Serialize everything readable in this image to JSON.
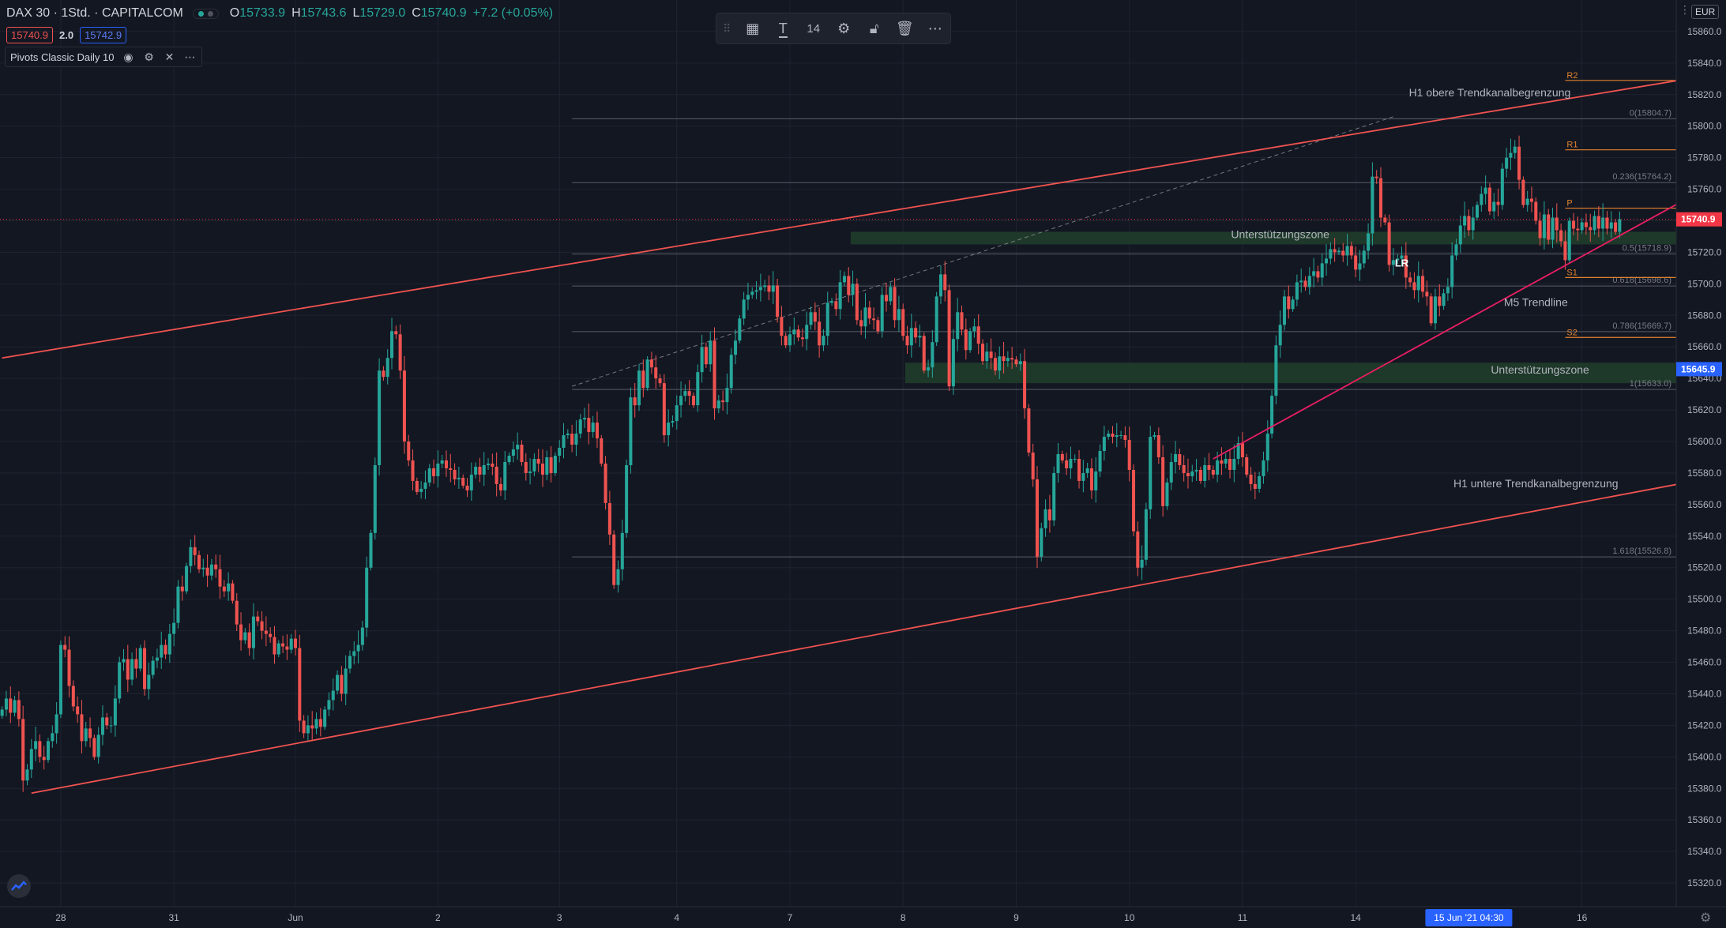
{
  "header": {
    "symbol": "DAX 30",
    "interval": "1Std.",
    "exchange": "CAPITALCOM",
    "open_label": "O",
    "open": "15733.9",
    "high_label": "H",
    "high": "15743.6",
    "low_label": "L",
    "low": "15729.0",
    "close_label": "C",
    "close": "15740.9",
    "change": "+7.2 (+0.05%)",
    "bid": "15740.9",
    "spread": "2.0",
    "ask": "15742.9",
    "indicator": "Pivots Classic Daily 10"
  },
  "toolbar": {
    "font_size": "14"
  },
  "currency": "EUR",
  "colors": {
    "background": "#131722",
    "up": "#26a69a",
    "down": "#ef5350",
    "channel": "#ef5350",
    "trendline": "#e91e63",
    "zone": "#1f3a2a",
    "grid": "#1f2330",
    "last_price_badge": "#f23645",
    "zone_price_badge": "#2962ff"
  },
  "chart_data": {
    "type": "candlestick",
    "title": "DAX 30, 1Std., CAPITALCOM",
    "y_axis": {
      "ticks": [
        15860,
        15840,
        15820,
        15800,
        15780,
        15760,
        15740,
        15720,
        15700,
        15680,
        15660,
        15640,
        15620,
        15600,
        15580,
        15560,
        15540,
        15520,
        15500,
        15480,
        15460,
        15440,
        15420,
        15400,
        15380,
        15360,
        15340,
        15320
      ],
      "tick_labels": [
        "15860.0",
        "15840.0",
        "15820.0",
        "15800.0",
        "15780.0",
        "15760.0",
        "15740.0",
        "15720.0",
        "15700.0",
        "15680.0",
        "15660.0",
        "15640.0",
        "15620.0",
        "15600.0",
        "15580.0",
        "15560.0",
        "15540.0",
        "15520.0",
        "15500.0",
        "15480.0",
        "15460.0",
        "15440.0",
        "15420.0",
        "15400.0",
        "15380.0",
        "15360.0",
        "15340.0",
        "15320.0"
      ],
      "ylim": [
        15305,
        15880
      ]
    },
    "x_axis": {
      "labels": [
        "28",
        "31",
        "Jun",
        "2",
        "3",
        "4",
        "7",
        "8",
        "9",
        "10",
        "11",
        "14",
        "16"
      ],
      "label_bars": [
        14,
        41,
        70,
        104,
        133,
        161,
        188,
        215,
        242,
        269,
        296,
        323,
        377
      ],
      "total_bars": 400,
      "crosshair_label": "15 Jun '21   04:30",
      "crosshair_bar": 350
    },
    "candles": [
      15430,
      15437,
      15428,
      15436,
      15424,
      15385,
      15392,
      15405,
      15410,
      15400,
      15398,
      15410,
      15415,
      15427,
      15471,
      15468,
      15445,
      15432,
      15427,
      15410,
      15418,
      15412,
      15400,
      15414,
      15425,
      15420,
      15420,
      15437,
      15460,
      15462,
      15449,
      15462,
      15456,
      15469,
      15443,
      15452,
      15461,
      15463,
      15471,
      15465,
      15478,
      15485,
      15508,
      15505,
      15521,
      15533,
      15528,
      15519,
      15520,
      15515,
      15522,
      15519,
      15508,
      15505,
      15510,
      15499,
      15484,
      15474,
      15479,
      15469,
      15489,
      15486,
      15480,
      15478,
      15476,
      15465,
      15472,
      15470,
      15468,
      15475,
      15469,
      15423,
      15415,
      15420,
      15418,
      15424,
      15419,
      15430,
      15436,
      15442,
      15452,
      15440,
      15456,
      15464,
      15467,
      15471,
      15482,
      15520,
      15542,
      15585,
      15645,
      15641,
      15653,
      15670,
      15668,
      15645,
      15600,
      15588,
      15575,
      15568,
      15570,
      15574,
      15583,
      15578,
      15586,
      15588,
      15583,
      15582,
      15576,
      15577,
      15572,
      15569,
      15579,
      15584,
      15579,
      15585,
      15586,
      15584,
      15573,
      15569,
      15587,
      15591,
      15595,
      15598,
      15587,
      15580,
      15581,
      15589,
      15586,
      15579,
      15590,
      15580,
      15591,
      15596,
      15604,
      15605,
      15598,
      15605,
      15614,
      15615,
      15606,
      15612,
      15602,
      15586,
      15561,
      15541,
      15509,
      15519,
      15542,
      15585,
      15628,
      15623,
      15645,
      15634,
      15652,
      15647,
      15640,
      15637,
      15604,
      15612,
      15613,
      15623,
      15629,
      15632,
      15629,
      15623,
      15644,
      15660,
      15649,
      15664,
      15621,
      15626,
      15625,
      15634,
      15655,
      15664,
      15678,
      15690,
      15693,
      15695,
      15696,
      15698,
      15699,
      15695,
      15699,
      15679,
      15667,
      15661,
      15668,
      15671,
      15666,
      15665,
      15674,
      15682,
      15676,
      15661,
      15667,
      15688,
      15689,
      15684,
      15701,
      15705,
      15693,
      15700,
      15677,
      15673,
      15685,
      15678,
      15677,
      15670,
      15693,
      15689,
      15698,
      15677,
      15684,
      15667,
      15661,
      15672,
      15666,
      15667,
      15645,
      15647,
      15663,
      15692,
      15706,
      15696,
      15635,
      15665,
      15682,
      15671,
      15658,
      15670,
      15673,
      15662,
      15651,
      15657,
      15653,
      15645,
      15654,
      15651,
      15653,
      15652,
      15649,
      15651,
      15621,
      15593,
      15576,
      15527,
      15545,
      15557,
      15550,
      15580,
      15592,
      15588,
      15583,
      15589,
      15589,
      15575,
      15580,
      15583,
      15569,
      15581,
      15594,
      15603,
      15605,
      15603,
      15604,
      15604,
      15601,
      15582,
      15543,
      15520,
      15525,
      15557,
      15603,
      15604,
      15590,
      15559,
      15574,
      15587,
      15592,
      15585,
      15580,
      15578,
      15581,
      15582,
      15575,
      15585,
      15582,
      15579,
      15588,
      15586,
      15589,
      15582,
      15589,
      15599,
      15590,
      15579,
      15573,
      15570,
      15578,
      15588,
      15605,
      15629,
      15661,
      15674,
      15692,
      15684,
      15690,
      15701,
      15702,
      15698,
      15705,
      15708,
      15704,
      15713,
      15716,
      15722,
      15720,
      15721,
      15718,
      15724,
      15718,
      15709,
      15713,
      15721,
      15732,
      15768,
      15767,
      15742,
      15739,
      15712,
      15715,
      15716,
      15718,
      15704,
      15701,
      15696,
      15705,
      15695,
      15692,
      15675,
      15692,
      15686,
      15694,
      15698,
      15718,
      15725,
      15737,
      15743,
      15734,
      15742,
      15750,
      15757,
      15761,
      15746,
      15752,
      15750,
      15773,
      15780,
      15783,
      15787,
      15766,
      15750,
      15754,
      15752,
      15740,
      15729,
      15744,
      15728,
      15742,
      15734,
      15727,
      15715,
      15740,
      15735,
      15734,
      15739,
      15736,
      15734,
      15743,
      15735,
      15742,
      15735,
      15739,
      15733,
      15741
    ],
    "last_price": 15740.9,
    "lines": [
      {
        "name": "H1 obere Trendkanalbegrenzung",
        "color": "#ef5350",
        "from": {
          "bar": 0,
          "price": 15653
        },
        "to": {
          "bar": 400,
          "price": 15829
        }
      },
      {
        "name": "H1 untere Trendkanalbegrenzung",
        "color": "#ef5350",
        "from": {
          "bar": 7,
          "price": 15377
        },
        "to": {
          "bar": 400,
          "price": 15573
        }
      },
      {
        "name": "M5 Trendline",
        "color": "#e91e63",
        "from": {
          "bar": 289,
          "price": 15589
        },
        "to": {
          "bar": 400,
          "price": 15751
        }
      }
    ],
    "dashed_trend": {
      "from": {
        "bar": 136,
        "price": 15635
      },
      "to": {
        "bar": 332,
        "price": 15806
      }
    },
    "zones": [
      {
        "label": "Unterstützungszone",
        "from_bar": 203,
        "to_bar": 400,
        "top": 15733,
        "bottom": 15725
      },
      {
        "label": "Unterstützungszone",
        "from_bar": 216,
        "to_bar": 400,
        "top": 15650,
        "bottom": 15637
      }
    ],
    "fib_levels": [
      {
        "label": "0(15804.7)",
        "price": 15804.7
      },
      {
        "label": "0.236(15764.2)",
        "price": 15764.2
      },
      {
        "label": "0.5(15718.9)",
        "price": 15718.9
      },
      {
        "label": "0.618(15698.6)",
        "price": 15698.6
      },
      {
        "label": "0.786(15669.7)",
        "price": 15669.7
      },
      {
        "label": "1(15633.0)",
        "price": 15633.0
      },
      {
        "label": "1.618(15526.8)",
        "price": 15526.8
      }
    ],
    "pivots": [
      {
        "label": "R2",
        "price": 15829
      },
      {
        "label": "R1",
        "price": 15785
      },
      {
        "label": "P",
        "price": 15748
      },
      {
        "label": "S1",
        "price": 15704
      },
      {
        "label": "S2",
        "price": 15666
      }
    ],
    "annotations": [
      {
        "text": "H1 obere Trendkanalbegrenzung",
        "bar": 355,
        "price": 15819
      },
      {
        "text": "Unterstützungszone",
        "bar": 305,
        "price": 15729
      },
      {
        "text": "Unterstützungszone",
        "bar": 367,
        "price": 15643
      },
      {
        "text": "M5 Trendline",
        "bar": 366,
        "price": 15686
      },
      {
        "text": "H1 untere Trendkanalbegrenzung",
        "bar": 366,
        "price": 15571
      },
      {
        "text": "LR",
        "bar": 334,
        "price": 15711
      }
    ],
    "price_badges": [
      {
        "label": "15740.9",
        "price": 15740.9,
        "color": "#f23645"
      },
      {
        "label": "15645.9",
        "price": 15645.9,
        "color": "#2962ff"
      }
    ]
  }
}
